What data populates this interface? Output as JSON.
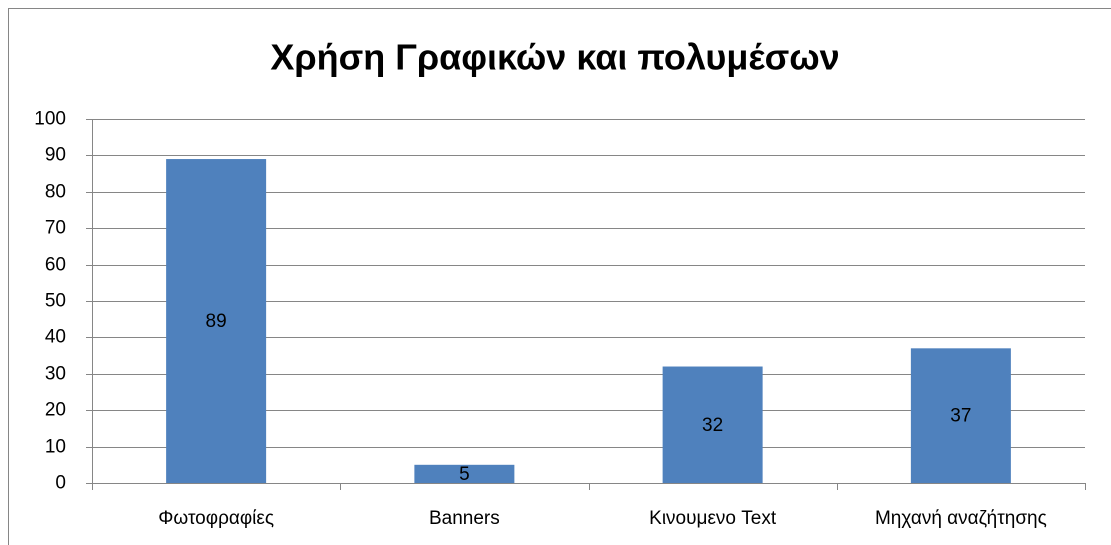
{
  "chart_data": {
    "type": "bar",
    "title": "Χρήση Γραφικών και πολυμέσων",
    "categories": [
      "Φωτοφραφίες",
      "Banners",
      "Κινουμενο Text",
      "Μηχανή αναζήτησης"
    ],
    "values": [
      89,
      5,
      32,
      37
    ],
    "color": "#4f81bd",
    "ylim": [
      0,
      100
    ],
    "yticks": [
      0,
      10,
      20,
      30,
      40,
      50,
      60,
      70,
      80,
      90,
      100
    ],
    "grid": true
  }
}
